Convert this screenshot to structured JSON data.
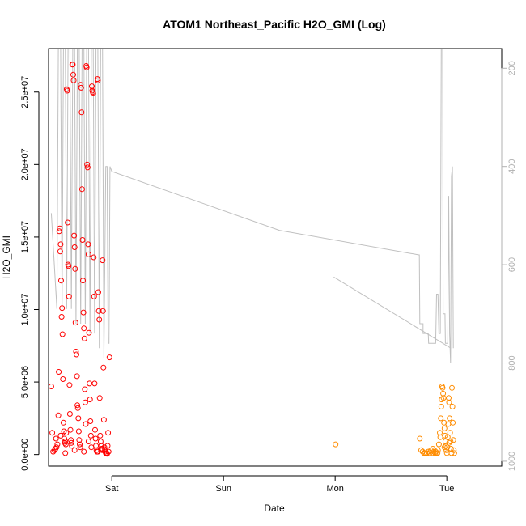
{
  "chart_data": {
    "type": "scatter",
    "title": "ATOM1 Northeast_Pacific H2O_GMI (Log)",
    "xlabel": "Date",
    "ylabel": "H2O_GMI",
    "x_units": "hours from Friday 00:00 (axis printed as weekday names)",
    "xlim": [
      10.4,
      107.8
    ],
    "ylim": [
      -800000,
      28000000
    ],
    "y_ticks": [
      0,
      5000000,
      10000000,
      15000000,
      20000000,
      25000000
    ],
    "y_tick_labels": [
      "0.0e+00",
      "5.0e+06",
      "1.0e+07",
      "1.5e+07",
      "2.0e+07",
      "2.5e+07"
    ],
    "x_ticks": [
      24,
      48,
      72,
      96
    ],
    "x_tick_labels": [
      "Sat",
      "Sun",
      "Mon",
      "Tue"
    ],
    "y2_ticks": [
      200,
      400,
      600,
      800,
      1000
    ],
    "y2_tick_labels": [
      "200",
      "400",
      "600",
      "800",
      "1000"
    ],
    "y2_lim": [
      160,
      1010
    ],
    "y2_reversed": true,
    "colors": {
      "series1": "#ff0000",
      "series2": "#ff8c00",
      "pressure": "#c0c0c0",
      "axis_right": "#b0b0b0"
    },
    "grid": false,
    "series": [
      {
        "marker": "open-circle",
        "color": "#ff0000",
        "points": [
          [
            11.0,
            4700000
          ],
          [
            11.2,
            1500000
          ],
          [
            11.4,
            200000
          ],
          [
            11.7,
            300000
          ],
          [
            11.9,
            400000
          ],
          [
            12.1,
            500000
          ],
          [
            12.3,
            700000
          ],
          [
            12.5,
            2700000
          ],
          [
            12.6,
            5700000
          ],
          [
            12.7,
            15400000
          ],
          [
            12.8,
            15600000
          ],
          [
            12.9,
            14000000
          ],
          [
            13.0,
            14500000
          ],
          [
            13.1,
            12000000
          ],
          [
            13.2,
            9500000
          ],
          [
            13.3,
            10100000
          ],
          [
            13.4,
            8300000
          ],
          [
            13.5,
            5200000
          ],
          [
            13.6,
            2200000
          ],
          [
            13.7,
            1600000
          ],
          [
            13.8,
            1100000
          ],
          [
            13.9,
            800000
          ],
          [
            14.0,
            900000
          ],
          [
            14.1,
            700000
          ],
          [
            14.2,
            1500000
          ],
          [
            14.3,
            25200000
          ],
          [
            14.4,
            25100000
          ],
          [
            14.5,
            16000000
          ],
          [
            14.6,
            13100000
          ],
          [
            14.7,
            13000000
          ],
          [
            14.8,
            10900000
          ],
          [
            14.9,
            4800000
          ],
          [
            15.0,
            2800000
          ],
          [
            15.1,
            1700000
          ],
          [
            15.2,
            1000000
          ],
          [
            15.3,
            800000
          ],
          [
            15.4,
            600000
          ],
          [
            15.5,
            26900000
          ],
          [
            15.6,
            26900000
          ],
          [
            15.7,
            26200000
          ],
          [
            15.8,
            25800000
          ],
          [
            15.9,
            15100000
          ],
          [
            16.0,
            14300000
          ],
          [
            16.1,
            12800000
          ],
          [
            16.2,
            9100000
          ],
          [
            16.3,
            7100000
          ],
          [
            16.4,
            6900000
          ],
          [
            16.5,
            5400000
          ],
          [
            16.6,
            3400000
          ],
          [
            16.7,
            3200000
          ],
          [
            16.8,
            2500000
          ],
          [
            16.9,
            1600000
          ],
          [
            17.0,
            1000000
          ],
          [
            17.1,
            700000
          ],
          [
            17.2,
            500000
          ],
          [
            17.3,
            25500000
          ],
          [
            17.4,
            25300000
          ],
          [
            17.5,
            23600000
          ],
          [
            17.6,
            18300000
          ],
          [
            17.7,
            14800000
          ],
          [
            17.8,
            12000000
          ],
          [
            17.9,
            9800000
          ],
          [
            18.0,
            8700000
          ],
          [
            18.1,
            8000000
          ],
          [
            18.2,
            4500000
          ],
          [
            18.3,
            3600000
          ],
          [
            18.4,
            2100000
          ],
          [
            18.5,
            26800000
          ],
          [
            18.6,
            26700000
          ],
          [
            18.7,
            20000000
          ],
          [
            18.8,
            19800000
          ],
          [
            18.9,
            14500000
          ],
          [
            19.0,
            13800000
          ],
          [
            19.1,
            8400000
          ],
          [
            19.2,
            4900000
          ],
          [
            19.3,
            3800000
          ],
          [
            19.4,
            2300000
          ],
          [
            19.5,
            1300000
          ],
          [
            19.6,
            500000
          ],
          [
            19.7,
            25400000
          ],
          [
            19.8,
            25100000
          ],
          [
            19.9,
            25000000
          ],
          [
            20.0,
            24900000
          ],
          [
            20.1,
            13600000
          ],
          [
            20.2,
            10900000
          ],
          [
            20.3,
            4900000
          ],
          [
            20.4,
            1700000
          ],
          [
            20.5,
            1100000
          ],
          [
            20.6,
            600000
          ],
          [
            20.7,
            300000
          ],
          [
            20.8,
            200000
          ],
          [
            20.9,
            25900000
          ],
          [
            21.0,
            25800000
          ],
          [
            21.1,
            11200000
          ],
          [
            21.2,
            9900000
          ],
          [
            21.3,
            9300000
          ],
          [
            21.4,
            3900000
          ],
          [
            21.5,
            1300000
          ],
          [
            21.6,
            900000
          ],
          [
            21.7,
            600000
          ],
          [
            21.8,
            400000
          ],
          [
            21.9,
            300000
          ],
          [
            22.0,
            13400000
          ],
          [
            22.1,
            9900000
          ],
          [
            22.2,
            6000000
          ],
          [
            22.3,
            2400000
          ],
          [
            22.4,
            500000
          ],
          [
            22.5,
            300000
          ],
          [
            22.6,
            200000
          ],
          [
            22.7,
            100000
          ],
          [
            22.8,
            100000
          ],
          [
            22.9,
            100000
          ],
          [
            23.0,
            50000
          ],
          [
            23.1,
            600000
          ],
          [
            23.2,
            1500000
          ],
          [
            23.3,
            200000
          ],
          [
            23.5,
            6700000
          ],
          [
            12.0,
            1100000
          ],
          [
            13.0,
            1300000
          ],
          [
            14.0,
            100000
          ],
          [
            16.0,
            300000
          ],
          [
            18.0,
            200000
          ],
          [
            19.0,
            900000
          ],
          [
            21.0,
            200000
          ],
          [
            22.0,
            400000
          ]
        ]
      },
      {
        "marker": "open-circle",
        "color": "#ff8c00",
        "points": [
          [
            72.1,
            700000
          ],
          [
            90.2,
            1100000
          ],
          [
            90.5,
            300000
          ],
          [
            90.8,
            200000
          ],
          [
            91.1,
            100000
          ],
          [
            91.4,
            100000
          ],
          [
            91.7,
            100000
          ],
          [
            92.0,
            200000
          ],
          [
            92.3,
            100000
          ],
          [
            92.6,
            300000
          ],
          [
            92.9,
            100000
          ],
          [
            93.2,
            200000
          ],
          [
            93.5,
            100000
          ],
          [
            93.8,
            100000
          ],
          [
            94.1,
            300000
          ],
          [
            94.3,
            700000
          ],
          [
            94.5,
            1500000
          ],
          [
            94.6,
            1200000
          ],
          [
            94.7,
            2500000
          ],
          [
            94.8,
            3300000
          ],
          [
            94.9,
            3800000
          ],
          [
            95.0,
            4700000
          ],
          [
            95.1,
            4600000
          ],
          [
            95.2,
            4200000
          ],
          [
            95.3,
            3900000
          ],
          [
            95.4,
            2200000
          ],
          [
            95.5,
            1800000
          ],
          [
            95.6,
            1300000
          ],
          [
            95.7,
            900000
          ],
          [
            95.8,
            600000
          ],
          [
            95.9,
            300000
          ],
          [
            96.0,
            100000
          ],
          [
            96.1,
            500000
          ],
          [
            96.2,
            1200000
          ],
          [
            96.3,
            2100000
          ],
          [
            96.4,
            3900000
          ],
          [
            96.5,
            3600000
          ],
          [
            96.6,
            2500000
          ],
          [
            96.7,
            1500000
          ],
          [
            96.8,
            900000
          ],
          [
            96.9,
            400000
          ],
          [
            97.0,
            100000
          ],
          [
            97.1,
            4600000
          ],
          [
            97.2,
            3300000
          ],
          [
            97.3,
            2200000
          ],
          [
            97.4,
            1000000
          ],
          [
            97.5,
            300000
          ],
          [
            97.6,
            100000
          ],
          [
            93.0,
            400000
          ],
          [
            93.6,
            200000
          ],
          [
            94.0,
            100000
          ],
          [
            95.5,
            500000
          ],
          [
            96.5,
            800000
          ]
        ]
      },
      {
        "name": "",
        "type": "line",
        "axis": "right",
        "color": "#c0c0c0",
        "segments": [
          [
            [
              11.0,
              495
            ],
            [
              12.2,
              690
            ],
            [
              12.5,
              160
            ],
            [
              13.0,
              160
            ],
            [
              13.3,
              690
            ],
            [
              13.6,
              160
            ],
            [
              14.0,
              160
            ],
            [
              14.3,
              690
            ],
            [
              14.6,
              160
            ],
            [
              15.0,
              160
            ],
            [
              15.3,
              690
            ],
            [
              15.6,
              160
            ],
            [
              16.0,
              160
            ],
            [
              16.3,
              720
            ],
            [
              16.6,
              160
            ],
            [
              17.0,
              160
            ],
            [
              17.3,
              720
            ],
            [
              17.6,
              160
            ],
            [
              18.0,
              160
            ],
            [
              18.3,
              720
            ],
            [
              18.6,
              160
            ],
            [
              19.0,
              160
            ],
            [
              19.3,
              740
            ],
            [
              19.6,
              160
            ],
            [
              20.0,
              160
            ],
            [
              20.3,
              740
            ],
            [
              20.6,
              160
            ],
            [
              21.0,
              160
            ],
            [
              21.3,
              770
            ],
            [
              21.6,
              160
            ],
            [
              22.0,
              160
            ],
            [
              22.3,
              790
            ],
            [
              22.7,
              400
            ],
            [
              23.0,
              400
            ],
            [
              23.2,
              760
            ],
            [
              23.4,
              760
            ],
            [
              23.6,
              400
            ],
            [
              24.0,
              410
            ],
            [
              60.0,
              530
            ],
            [
              90.0,
              580
            ],
            [
              90.1,
              580
            ],
            [
              90.2,
              720
            ],
            [
              90.9,
              720
            ],
            [
              90.9,
              740
            ],
            [
              92.0,
              740
            ],
            [
              92.1,
              760
            ],
            [
              93.6,
              760
            ],
            [
              93.8,
              660
            ],
            [
              94.1,
              660
            ],
            [
              94.3,
              740
            ],
            [
              94.6,
              740
            ],
            [
              94.8,
              160
            ],
            [
              95.1,
              160
            ],
            [
              95.2,
              700
            ],
            [
              95.6,
              700
            ],
            [
              95.7,
              760
            ],
            [
              96.2,
              760
            ],
            [
              96.4,
              460
            ],
            [
              96.6,
              740
            ],
            [
              96.8,
              800
            ],
            [
              97.0,
              420
            ],
            [
              97.2,
              400
            ],
            [
              97.4,
              770
            ]
          ],
          [
            [
              71.7,
              625
            ],
            [
              96.9,
              770
            ]
          ]
        ]
      }
    ]
  }
}
